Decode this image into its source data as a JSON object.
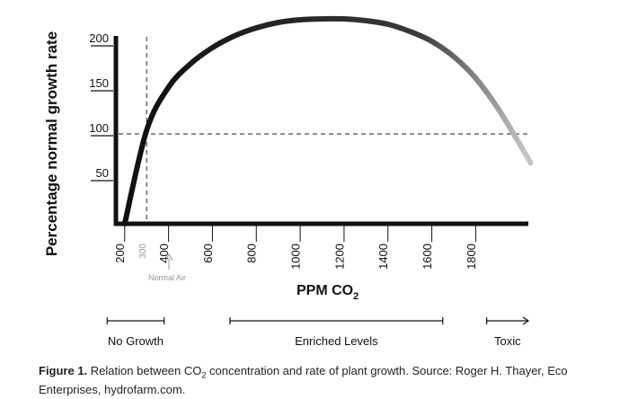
{
  "chart_data": {
    "type": "line",
    "ylabel": "Percentage normal growth rate",
    "xlabel": {
      "main": "PPM CO",
      "sub": "2"
    },
    "y_ticks": [
      50,
      100,
      150,
      200
    ],
    "x_ticks": [
      "200",
      "300",
      "400",
      "600",
      "800",
      "1000",
      "1200",
      "1400",
      "1600",
      "1800"
    ],
    "xlim": [
      160,
      2040
    ],
    "ylim": [
      0,
      230
    ],
    "series": [
      {
        "x": [
          200,
          300,
          400,
          500,
          600,
          700,
          800,
          900,
          1000,
          1100,
          1200,
          1300,
          1400,
          1500,
          1600,
          1700,
          1800,
          1900,
          2000,
          2050
        ],
        "y": [
          0,
          104,
          152,
          178,
          196,
          209,
          218,
          224,
          227,
          228,
          228,
          226,
          222,
          214,
          203,
          186,
          162,
          129,
          89,
          68
        ]
      }
    ],
    "reference_lines": {
      "vertical_x": 300,
      "horizontal_y": 100
    },
    "annotations": {
      "normal_air": "Normal Air"
    },
    "ranges": [
      {
        "label": "No Growth",
        "from": 120,
        "to": 380,
        "arrow_end": false
      },
      {
        "label": "Enriched Levels",
        "from": 680,
        "to": 1650,
        "arrow_end": false
      },
      {
        "label": "Toxic",
        "from": 1850,
        "to": 2040,
        "arrow_end": true
      }
    ],
    "line_color_start": "#111111",
    "line_color_end": "#c4c4c4"
  },
  "caption": {
    "label": "Figure 1.",
    "text_before": " Relation between CO",
    "sub": "2",
    "text_after": " concentration and rate of plant growth. Source: Roger H. Thayer, Eco Enterprises, hydrofarm.com."
  }
}
